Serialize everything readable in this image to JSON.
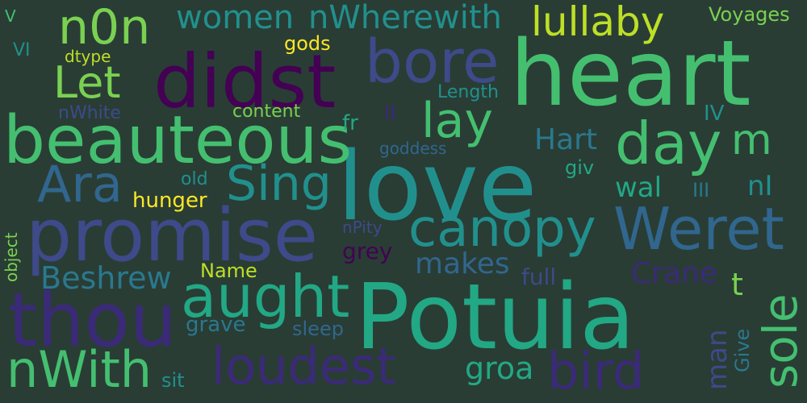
{
  "background": "#293d35",
  "palette": {
    "purple": "#440154",
    "indigo": "#3b2a78",
    "navy": "#3e4a89",
    "blue": "#31668e",
    "steel": "#2a788e",
    "teal": "#21908d",
    "sea": "#22a884",
    "green": "#44bf70",
    "lime": "#7ad151",
    "chartreuse": "#bddf26",
    "yellow": "#fde725"
  },
  "words": [
    {
      "text": "love",
      "color": "#21908d"
    },
    {
      "text": "Potuia",
      "color": "#22a884"
    },
    {
      "text": "heart",
      "color": "#44bf70"
    },
    {
      "text": "didst",
      "color": "#440154"
    },
    {
      "text": "promise",
      "color": "#3e4a89"
    },
    {
      "text": "beauteous",
      "color": "#44bf70"
    },
    {
      "text": "thou",
      "color": "#3b2a78"
    },
    {
      "text": "aught",
      "color": "#22a884"
    },
    {
      "text": "bore",
      "color": "#3e4a89"
    },
    {
      "text": "Weret",
      "color": "#31668e"
    },
    {
      "text": "canopy",
      "color": "#21908d"
    },
    {
      "text": "nWith",
      "color": "#44bf70"
    },
    {
      "text": "loudest",
      "color": "#3b2a78"
    },
    {
      "text": "bird",
      "color": "#3b2a78"
    },
    {
      "text": "day",
      "color": "#44bf70"
    },
    {
      "text": "sole",
      "color": "#44bf70"
    },
    {
      "text": "Ara",
      "color": "#31668e"
    },
    {
      "text": "Sing",
      "color": "#21908d"
    },
    {
      "text": "Let",
      "color": "#7ad151"
    },
    {
      "text": "n0n",
      "color": "#7ad151"
    },
    {
      "text": "lullaby",
      "color": "#bddf26"
    },
    {
      "text": "lay",
      "color": "#44bf70"
    },
    {
      "text": "women",
      "color": "#21908d"
    },
    {
      "text": "nWherewith",
      "color": "#21908d"
    },
    {
      "text": "m",
      "color": "#44bf70"
    },
    {
      "text": "Hart",
      "color": "#2a788e"
    },
    {
      "text": "makes",
      "color": "#31668e"
    },
    {
      "text": "Beshrew",
      "color": "#2a788e"
    },
    {
      "text": "Crane",
      "color": "#3b2a78"
    },
    {
      "text": "groa",
      "color": "#22a884"
    },
    {
      "text": "man",
      "color": "#3e4a89"
    },
    {
      "text": "t",
      "color": "#7ad151"
    },
    {
      "text": "wal",
      "color": "#22a884"
    },
    {
      "text": "nI",
      "color": "#21908d"
    },
    {
      "text": "Voyages",
      "color": "#7ad151"
    },
    {
      "text": "gods",
      "color": "#fde725"
    },
    {
      "text": "hunger",
      "color": "#fde725"
    },
    {
      "text": "Name",
      "color": "#bddf26"
    },
    {
      "text": "grey",
      "color": "#440154"
    },
    {
      "text": "full",
      "color": "#3e4a89"
    },
    {
      "text": "sleep",
      "color": "#31668e"
    },
    {
      "text": "grave",
      "color": "#2a788e"
    },
    {
      "text": "sit",
      "color": "#21908d"
    },
    {
      "text": "Give",
      "color": "#2a788e"
    },
    {
      "text": "object",
      "color": "#7ad151"
    },
    {
      "text": "content",
      "color": "#7ad151"
    },
    {
      "text": "nWhite",
      "color": "#3e4a89"
    },
    {
      "text": "dtype",
      "color": "#bddf26"
    },
    {
      "text": "Length",
      "color": "#21908d"
    },
    {
      "text": "goddess",
      "color": "#31668e"
    },
    {
      "text": "fr",
      "color": "#22a884"
    },
    {
      "text": "II",
      "color": "#3b2a78"
    },
    {
      "text": "IV",
      "color": "#21908d"
    },
    {
      "text": "giv",
      "color": "#22a884"
    },
    {
      "text": "old",
      "color": "#21908d"
    },
    {
      "text": "III",
      "color": "#2a788e"
    },
    {
      "text": "nPity",
      "color": "#3e4a89"
    },
    {
      "text": "VI",
      "color": "#21908d"
    },
    {
      "text": "V",
      "color": "#44bf70"
    }
  ]
}
